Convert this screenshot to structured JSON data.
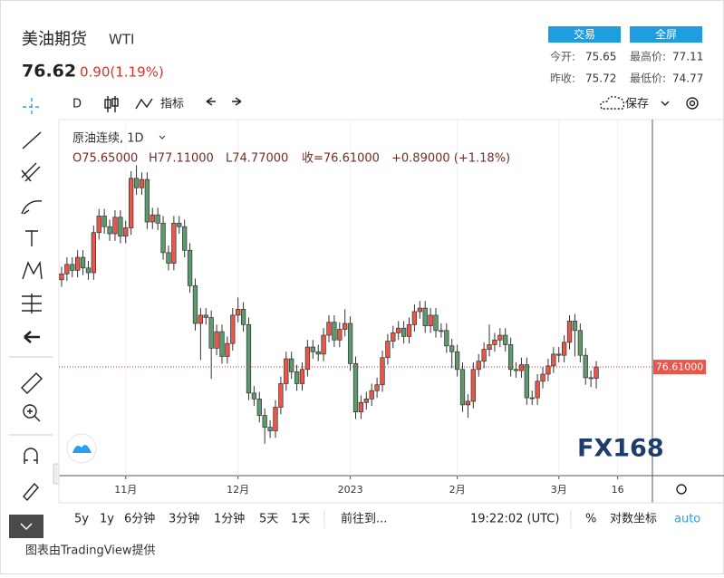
{
  "header": {
    "name": "美油期货",
    "symbol": "WTI",
    "price": 76.62,
    "change": "0.90(1.19%)",
    "buttons": [
      "交易",
      "全屏"
    ],
    "stats": [
      {
        "label": "今开:",
        "value": 75.65
      },
      {
        "label": "最高价:",
        "value": 77.11
      },
      {
        "label": "昨收:",
        "value": 75.72
      },
      {
        "label": "最低价:",
        "value": 74.77
      }
    ]
  },
  "toolbar": {
    "interval": "D",
    "indicators": "指标",
    "save": "保存"
  },
  "chart_data": {
    "type": "candlestick",
    "title": "原油连续, 1D",
    "ohlc_legend": [
      "O75.65000",
      "H77.11000",
      "L74.77000",
      "收=76.61000",
      "+0.89000 (+1.18%)"
    ],
    "watermark": "FX168",
    "up_color": "#e8574a",
    "down_color": "#5e9a6e",
    "open": [
      84.0,
      84.5,
      85.3,
      84.8,
      85.9,
      85.0,
      84.6,
      88.0,
      89.4,
      88.5,
      87.9,
      89.3,
      87.7,
      88.4,
      92.6,
      91.8,
      92.5,
      88.9,
      89.5,
      88.8,
      86.3,
      85.4,
      88.8,
      88.5,
      86.5,
      83.5,
      80.3,
      81.0,
      80.8,
      78.2,
      79.6,
      77.5,
      78.6,
      81.0,
      81.5,
      80.2,
      74.4,
      73.9,
      72.5,
      71.5,
      71.2,
      73.2,
      75.2,
      77.3,
      76.2,
      75.2,
      76.4,
      78.3,
      77.9,
      77.7,
      79.3,
      80.4,
      78.9,
      79.8,
      80.3,
      76.9,
      72.8,
      73.6,
      73.9,
      74.6,
      75.1,
      77.4,
      78.8,
      79.5,
      79.9,
      79.2,
      80.2,
      81.3,
      81.6,
      80.1,
      81.0,
      79.7,
      79.7,
      78.4,
      77.9,
      76.4,
      73.4,
      73.7,
      76.4,
      77.1,
      78.1,
      78.5,
      78.9,
      79.3,
      78.5,
      76.4,
      76.3,
      76.8,
      74.0,
      74.0,
      75.4,
      76.0,
      76.7,
      77.7,
      77.6,
      78.7,
      80.5,
      79.7,
      77.6,
      75.7,
      75.65
    ],
    "high": [
      85.1,
      85.9,
      85.9,
      86.5,
      86.5,
      85.6,
      88.6,
      90.0,
      90.0,
      89.1,
      89.9,
      89.9,
      89.0,
      93.2,
      93.7,
      93.1,
      93.1,
      90.1,
      90.1,
      89.4,
      86.9,
      89.4,
      89.4,
      89.1,
      87.1,
      84.1,
      81.6,
      81.6,
      81.4,
      80.2,
      80.2,
      79.2,
      81.6,
      82.5,
      82.1,
      80.8,
      75.0,
      74.5,
      73.1,
      72.1,
      73.8,
      75.8,
      77.9,
      77.9,
      76.8,
      77.0,
      78.9,
      78.9,
      78.5,
      79.9,
      81.0,
      81.0,
      80.4,
      81.5,
      80.9,
      77.5,
      74.2,
      74.5,
      75.2,
      75.7,
      78.0,
      79.4,
      80.1,
      80.5,
      80.5,
      80.8,
      81.9,
      82.2,
      82.2,
      81.6,
      81.6,
      80.3,
      80.3,
      79.0,
      78.5,
      77.0,
      74.3,
      77.0,
      77.7,
      78.7,
      80.2,
      79.5,
      79.9,
      79.9,
      79.1,
      77.0,
      77.4,
      77.4,
      74.6,
      76.0,
      76.6,
      77.3,
      78.3,
      78.3,
      79.3,
      81.0,
      81.1,
      80.3,
      78.2,
      76.3,
      77.11
    ],
    "low": [
      83.4,
      83.9,
      84.2,
      84.2,
      84.4,
      84.0,
      84.0,
      87.4,
      87.9,
      87.3,
      87.3,
      87.1,
      87.1,
      87.8,
      91.2,
      91.2,
      88.3,
      88.3,
      88.2,
      85.7,
      84.8,
      84.8,
      87.9,
      85.9,
      82.9,
      79.7,
      77.2,
      80.2,
      75.6,
      77.6,
      76.9,
      76.9,
      78.0,
      80.4,
      79.6,
      73.8,
      73.3,
      71.9,
      70.1,
      70.6,
      70.6,
      72.6,
      74.6,
      75.6,
      74.6,
      74.6,
      75.8,
      77.3,
      77.1,
      77.1,
      78.7,
      78.3,
      78.3,
      79.2,
      76.3,
      72.2,
      72.2,
      73.0,
      73.3,
      74.0,
      74.5,
      76.8,
      78.2,
      78.9,
      78.6,
      78.6,
      79.6,
      80.7,
      79.5,
      79.5,
      79.1,
      79.1,
      77.8,
      76.5,
      75.8,
      72.8,
      72.3,
      73.1,
      75.8,
      76.5,
      77.5,
      77.9,
      78.3,
      77.9,
      75.8,
      75.7,
      75.7,
      73.4,
      73.4,
      73.4,
      74.8,
      75.4,
      76.1,
      77.0,
      77.0,
      78.1,
      77.5,
      77.0,
      75.1,
      74.9,
      74.77
    ],
    "close": [
      84.5,
      85.3,
      84.8,
      85.9,
      85.0,
      84.6,
      88.0,
      89.4,
      88.5,
      87.9,
      89.3,
      87.7,
      88.4,
      92.6,
      91.8,
      92.5,
      88.9,
      89.5,
      88.8,
      86.3,
      85.4,
      88.8,
      88.5,
      86.5,
      83.5,
      80.3,
      81.0,
      80.8,
      78.2,
      79.6,
      77.5,
      78.6,
      81.0,
      81.5,
      80.2,
      74.4,
      73.9,
      72.5,
      71.5,
      71.2,
      73.2,
      75.2,
      77.3,
      76.2,
      75.2,
      76.4,
      78.3,
      77.9,
      77.7,
      79.3,
      80.4,
      78.9,
      79.8,
      80.3,
      76.9,
      72.8,
      73.6,
      73.9,
      74.6,
      75.1,
      77.4,
      78.8,
      79.5,
      79.9,
      79.2,
      80.2,
      81.3,
      81.6,
      80.1,
      81.0,
      79.7,
      79.7,
      78.4,
      77.9,
      76.4,
      73.4,
      73.7,
      76.4,
      77.1,
      78.1,
      78.5,
      78.9,
      79.3,
      78.5,
      76.4,
      76.3,
      76.8,
      74.0,
      74.0,
      75.4,
      76.0,
      76.7,
      77.7,
      77.6,
      78.7,
      80.5,
      79.7,
      77.6,
      75.7,
      75.7,
      76.61
    ],
    "xlim": [
      -0.5,
      110.5
    ],
    "xticks": [
      {
        "value": 12,
        "label": "11月"
      },
      {
        "value": 33,
        "label": "12月"
      },
      {
        "value": 54,
        "label": "2023"
      },
      {
        "value": 74,
        "label": "2月"
      },
      {
        "value": 93,
        "label": "3月"
      },
      {
        "value": 104,
        "label": "16"
      }
    ],
    "ylim": [
      67.4,
      97.5
    ],
    "grid": true,
    "price_line": {
      "value": 76.61,
      "label": "76.61000"
    }
  },
  "bottom_bar": {
    "ranges": [
      "5y",
      "1y",
      "6分钟",
      "3分钟",
      "1分钟",
      "5天",
      "1天"
    ],
    "goto": "前往到...",
    "time": "19:22:02 (UTC)",
    "percent": "%",
    "log": "对数坐标",
    "auto": "auto"
  },
  "footer": "图表由TradingView提供"
}
